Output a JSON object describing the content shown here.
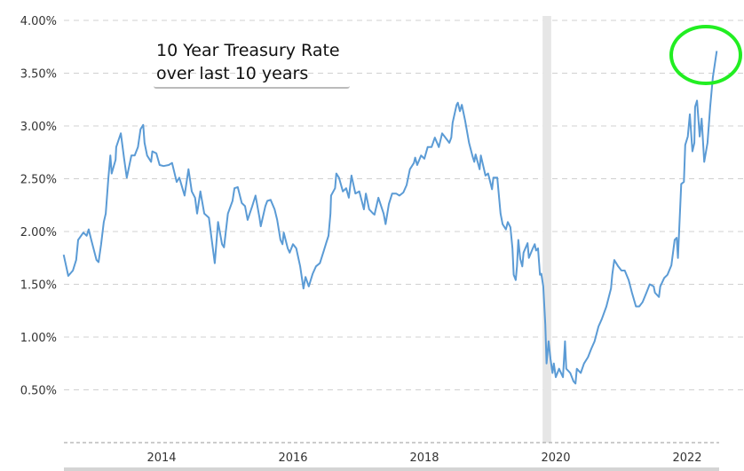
{
  "chart_data": {
    "type": "line",
    "title": "",
    "annotation": [
      "10 Year Treasury Rate",
      "over last 10 years"
    ],
    "xlabel": "",
    "ylabel": "",
    "x_ticks": [
      2014,
      2016,
      2018,
      2020,
      2022
    ],
    "x_tick_labels": [
      "2014",
      "2016",
      "2018",
      "2020",
      "2022"
    ],
    "y_ticks": [
      0.5,
      1.0,
      1.5,
      2.0,
      2.5,
      3.0,
      3.5,
      4.0
    ],
    "y_tick_labels": [
      "0.50%",
      "1.00%",
      "1.50%",
      "2.00%",
      "2.50%",
      "3.00%",
      "3.50%",
      "4.00%"
    ],
    "ylim": [
      0,
      4.0
    ],
    "xlim": [
      2012.5,
      2022.5
    ],
    "grid": "horizontal dashed",
    "recession_band": [
      2019.8,
      2019.93
    ],
    "highlight": "green circle around latest value",
    "colors": {
      "line": "#5b9bd5",
      "recession": "#e6e6e6",
      "highlight": "#22ee22",
      "grid": "#d0d0d0"
    },
    "series": [
      {
        "x": [
          2012.51,
          2012.58,
          2012.65,
          2012.7,
          2012.73,
          2012.81,
          2012.86,
          2012.89,
          2012.93,
          2013.01,
          2013.04,
          2013.08,
          2013.12,
          2013.15,
          2013.19,
          2013.22,
          2013.24,
          2013.3,
          2013.31,
          2013.38,
          2013.43,
          2013.47,
          2013.54,
          2013.59,
          2013.64,
          2013.68,
          2013.72,
          2013.74,
          2013.78,
          2013.84,
          2013.86,
          2013.92,
          2013.97,
          2014.03,
          2014.11,
          2014.16,
          2014.23,
          2014.27,
          2014.35,
          2014.41,
          2014.46,
          2014.51,
          2014.54,
          2014.59,
          2014.65,
          2014.72,
          2014.76,
          2014.81,
          2014.84,
          2014.86,
          2014.92,
          2014.95,
          2015.01,
          2015.08,
          2015.11,
          2015.16,
          2015.22,
          2015.27,
          2015.31,
          2015.38,
          2015.43,
          2015.49,
          2015.51,
          2015.58,
          2015.61,
          2015.66,
          2015.72,
          2015.76,
          2015.81,
          2015.84,
          2015.86,
          2015.92,
          2015.95,
          2016.0,
          2016.05,
          2016.11,
          2016.16,
          2016.19,
          2016.24,
          2016.3,
          2016.35,
          2016.41,
          2016.47,
          2016.51,
          2016.54,
          2016.57,
          2016.58,
          2016.64,
          2016.66,
          2016.7,
          2016.76,
          2016.81,
          2016.85,
          2016.89,
          2016.95,
          2017.01,
          2017.08,
          2017.11,
          2017.16,
          2017.22,
          2017.24,
          2017.3,
          2017.38,
          2017.41,
          2017.46,
          2017.51,
          2017.57,
          2017.62,
          2017.68,
          2017.73,
          2017.78,
          2017.84,
          2017.86,
          2017.89,
          2017.95,
          2018.0,
          2018.05,
          2018.11,
          2018.16,
          2018.22,
          2018.27,
          2018.32,
          2018.38,
          2018.41,
          2018.43,
          2018.49,
          2018.51,
          2018.54,
          2018.57,
          2018.62,
          2018.68,
          2018.73,
          2018.76,
          2018.78,
          2018.84,
          2018.86,
          2018.93,
          2018.97,
          2019.03,
          2019.05,
          2019.11,
          2019.16,
          2019.19,
          2019.24,
          2019.27,
          2019.31,
          2019.34,
          2019.36,
          2019.39,
          2019.41,
          2019.43,
          2019.46,
          2019.49,
          2019.51,
          2019.57,
          2019.59,
          2019.65,
          2019.68,
          2019.7,
          2019.73,
          2019.76,
          2019.78,
          2019.81,
          2019.84,
          2019.86,
          2019.89,
          2019.92,
          2019.95,
          2019.97,
          2020.0,
          2020.05,
          2020.11,
          2020.14,
          2020.16,
          2020.22,
          2020.27,
          2020.3,
          2020.32,
          2020.38,
          2020.43,
          2020.49,
          2020.54,
          2020.59,
          2020.65,
          2020.7,
          2020.77,
          2020.84,
          2020.86,
          2020.89,
          2020.95,
          2021.0,
          2021.05,
          2021.11,
          2021.16,
          2021.22,
          2021.27,
          2021.32,
          2021.38,
          2021.43,
          2021.49,
          2021.51,
          2021.57,
          2021.59,
          2021.65,
          2021.7,
          2021.76,
          2021.81,
          2021.84,
          2021.86,
          2021.91,
          2021.95,
          2021.97,
          2022.01,
          2022.04,
          2022.08,
          2022.11,
          2022.12,
          2022.15,
          2022.19,
          2022.22,
          2022.26,
          2022.31,
          2022.35,
          2022.39,
          2022.45
        ],
        "y": [
          1.78,
          1.58,
          1.63,
          1.73,
          1.92,
          1.99,
          1.96,
          2.02,
          1.92,
          1.73,
          1.71,
          1.88,
          2.09,
          2.17,
          2.51,
          2.72,
          2.55,
          2.68,
          2.8,
          2.93,
          2.69,
          2.51,
          2.72,
          2.72,
          2.8,
          2.97,
          3.01,
          2.84,
          2.72,
          2.66,
          2.76,
          2.74,
          2.63,
          2.62,
          2.63,
          2.65,
          2.47,
          2.51,
          2.34,
          2.59,
          2.38,
          2.32,
          2.17,
          2.38,
          2.17,
          2.13,
          1.94,
          1.7,
          1.94,
          2.09,
          1.88,
          1.85,
          2.17,
          2.29,
          2.41,
          2.42,
          2.27,
          2.24,
          2.11,
          2.24,
          2.34,
          2.13,
          2.05,
          2.24,
          2.29,
          2.3,
          2.21,
          2.11,
          1.92,
          1.88,
          1.99,
          1.84,
          1.8,
          1.88,
          1.84,
          1.67,
          1.46,
          1.57,
          1.48,
          1.6,
          1.67,
          1.7,
          1.82,
          1.9,
          1.96,
          2.17,
          2.34,
          2.41,
          2.55,
          2.51,
          2.38,
          2.41,
          2.32,
          2.53,
          2.36,
          2.38,
          2.21,
          2.36,
          2.21,
          2.17,
          2.16,
          2.32,
          2.17,
          2.07,
          2.26,
          2.36,
          2.36,
          2.34,
          2.37,
          2.44,
          2.59,
          2.65,
          2.7,
          2.63,
          2.72,
          2.69,
          2.8,
          2.8,
          2.89,
          2.8,
          2.93,
          2.89,
          2.84,
          2.89,
          3.03,
          3.2,
          3.22,
          3.14,
          3.2,
          3.05,
          2.84,
          2.72,
          2.66,
          2.73,
          2.59,
          2.72,
          2.53,
          2.55,
          2.4,
          2.51,
          2.51,
          2.17,
          2.07,
          2.02,
          2.09,
          2.04,
          1.84,
          1.59,
          1.54,
          1.67,
          1.92,
          1.74,
          1.67,
          1.8,
          1.89,
          1.75,
          1.84,
          1.88,
          1.82,
          1.84,
          1.59,
          1.6,
          1.48,
          1.12,
          0.75,
          0.96,
          0.79,
          0.66,
          0.75,
          0.62,
          0.7,
          0.62,
          0.96,
          0.7,
          0.66,
          0.58,
          0.56,
          0.7,
          0.66,
          0.75,
          0.81,
          0.89,
          0.96,
          1.1,
          1.17,
          1.29,
          1.46,
          1.59,
          1.73,
          1.67,
          1.63,
          1.63,
          1.54,
          1.42,
          1.29,
          1.29,
          1.33,
          1.42,
          1.5,
          1.48,
          1.42,
          1.38,
          1.48,
          1.56,
          1.59,
          1.68,
          1.92,
          1.94,
          1.75,
          2.45,
          2.47,
          2.82,
          2.9,
          3.11,
          2.76,
          2.84,
          3.18,
          3.24,
          2.9,
          3.07,
          2.66,
          2.84,
          3.18,
          3.46,
          3.71
        ]
      }
    ]
  }
}
